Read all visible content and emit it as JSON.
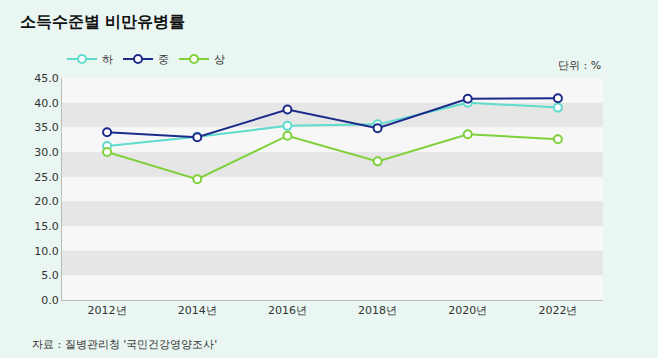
{
  "chart_data": {
    "type": "line",
    "title": "소득수준별 비만유병률",
    "unit": "단위 : %",
    "source": "자료 : 질병관리청 '국민건강영양조사'",
    "categories": [
      "2012년",
      "2014년",
      "2016년",
      "2018년",
      "2020년",
      "2022년"
    ],
    "series": [
      {
        "name": "하",
        "color": "#5fdccc",
        "marker": "circle",
        "values": [
          31.2,
          33.1,
          35.3,
          35.6,
          40.0,
          39.0
        ]
      },
      {
        "name": "중",
        "color": "#1c2a8a",
        "marker": "circle",
        "values": [
          34.0,
          33.0,
          38.6,
          34.8,
          40.8,
          40.9
        ]
      },
      {
        "name": "상",
        "color": "#7fd13b",
        "marker": "circle",
        "values": [
          30.0,
          24.5,
          33.3,
          28.1,
          33.6,
          32.6
        ]
      }
    ],
    "ylim": [
      0,
      45
    ],
    "yticks": [
      {
        "value": 0,
        "label": "0.0"
      },
      {
        "value": 5,
        "label": "5.0"
      },
      {
        "value": 10,
        "label": "10.0"
      },
      {
        "value": 15,
        "label": "15.0"
      },
      {
        "value": 20,
        "label": "20.0"
      },
      {
        "value": 25,
        "label": "25.0"
      },
      {
        "value": 30,
        "label": "30.0"
      },
      {
        "value": 35,
        "label": "35.0"
      },
      {
        "value": 40,
        "label": "40.0"
      },
      {
        "value": 45,
        "label": "45.0"
      }
    ],
    "grid": true,
    "legend": "top left"
  }
}
